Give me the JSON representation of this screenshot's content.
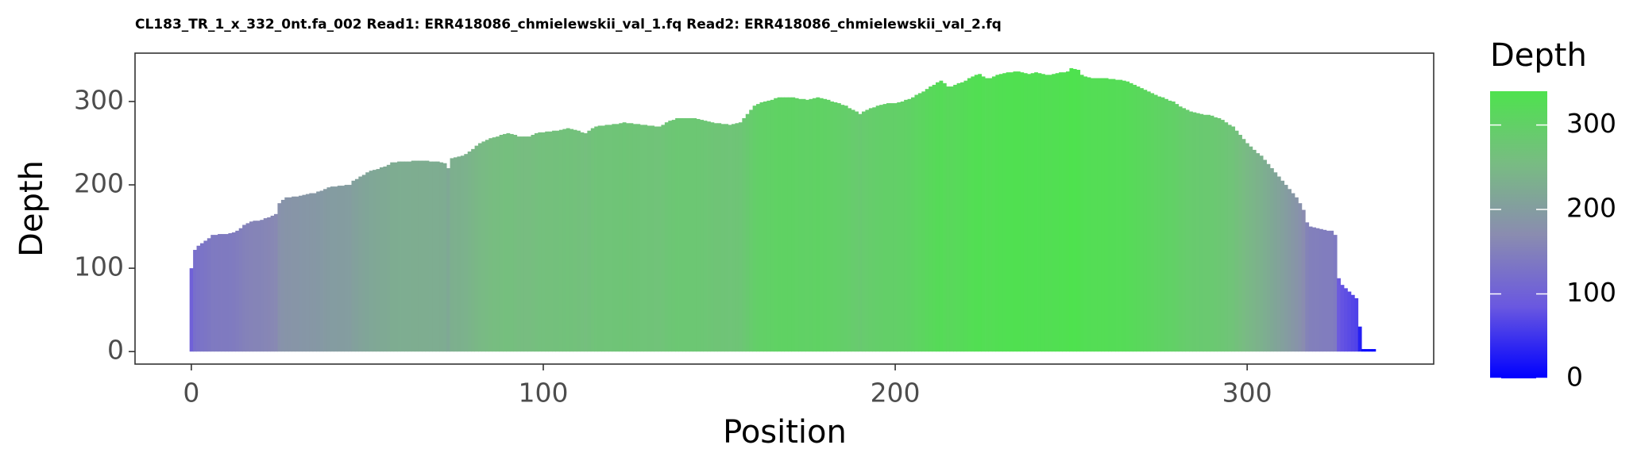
{
  "chart_data": {
    "type": "bar",
    "title": "CL183_TR_1_x_332_0nt.fa_002 Read1: ERR418086_chmielewskii_val_1.fq Read2: ERR418086_chmielewskii_val_2.fq",
    "xlabel": "Position",
    "ylabel": "Depth",
    "legend_title": "Depth",
    "x": [
      0,
      1,
      2,
      3,
      4,
      5,
      6,
      7,
      8,
      9,
      10,
      11,
      12,
      13,
      14,
      15,
      16,
      17,
      18,
      19,
      20,
      21,
      22,
      23,
      24,
      25,
      26,
      27,
      28,
      29,
      30,
      31,
      32,
      33,
      34,
      35,
      36,
      37,
      38,
      39,
      40,
      41,
      42,
      43,
      44,
      45,
      46,
      47,
      48,
      49,
      50,
      51,
      52,
      53,
      54,
      55,
      56,
      57,
      58,
      59,
      60,
      61,
      62,
      63,
      64,
      65,
      66,
      67,
      68,
      69,
      70,
      71,
      72,
      73,
      74,
      75,
      76,
      77,
      78,
      79,
      80,
      81,
      82,
      83,
      84,
      85,
      86,
      87,
      88,
      89,
      90,
      91,
      92,
      93,
      94,
      95,
      96,
      97,
      98,
      99,
      100,
      101,
      102,
      103,
      104,
      105,
      106,
      107,
      108,
      109,
      110,
      111,
      112,
      113,
      114,
      115,
      116,
      117,
      118,
      119,
      120,
      121,
      122,
      123,
      124,
      125,
      126,
      127,
      128,
      129,
      130,
      131,
      132,
      133,
      134,
      135,
      136,
      137,
      138,
      139,
      140,
      141,
      142,
      143,
      144,
      145,
      146,
      147,
      148,
      149,
      150,
      151,
      152,
      153,
      154,
      155,
      156,
      157,
      158,
      159,
      160,
      161,
      162,
      163,
      164,
      165,
      166,
      167,
      168,
      169,
      170,
      171,
      172,
      173,
      174,
      175,
      176,
      177,
      178,
      179,
      180,
      181,
      182,
      183,
      184,
      185,
      186,
      187,
      188,
      189,
      190,
      191,
      192,
      193,
      194,
      195,
      196,
      197,
      198,
      199,
      200,
      201,
      202,
      203,
      204,
      205,
      206,
      207,
      208,
      209,
      210,
      211,
      212,
      213,
      214,
      215,
      216,
      217,
      218,
      219,
      220,
      221,
      222,
      223,
      224,
      225,
      226,
      227,
      228,
      229,
      230,
      231,
      232,
      233,
      234,
      235,
      236,
      237,
      238,
      239,
      240,
      241,
      242,
      243,
      244,
      245,
      246,
      247,
      248,
      249,
      250,
      251,
      252,
      253,
      254,
      255,
      256,
      257,
      258,
      259,
      260,
      261,
      262,
      263,
      264,
      265,
      266,
      267,
      268,
      269,
      270,
      271,
      272,
      273,
      274,
      275,
      276,
      277,
      278,
      279,
      280,
      281,
      282,
      283,
      284,
      285,
      286,
      287,
      288,
      289,
      290,
      291,
      292,
      293,
      294,
      295,
      296,
      297,
      298,
      299,
      300,
      301,
      302,
      303,
      304,
      305,
      306,
      307,
      308,
      309,
      310,
      311,
      312,
      313,
      314,
      315,
      316,
      317,
      318,
      319,
      320,
      321,
      322,
      323,
      324,
      325,
      326,
      327,
      328,
      329,
      330,
      331,
      332,
      333,
      334,
      335,
      336
    ],
    "values": [
      100,
      122,
      127,
      130,
      133,
      136,
      140,
      140,
      141,
      141,
      141,
      142,
      143,
      145,
      148,
      152,
      154,
      156,
      157,
      157,
      158,
      160,
      161,
      163,
      165,
      178,
      182,
      185,
      185,
      186,
      186,
      187,
      188,
      189,
      190,
      190,
      192,
      193,
      195,
      197,
      198,
      198,
      199,
      199,
      200,
      200,
      205,
      207,
      210,
      212,
      215,
      217,
      218,
      219,
      221,
      222,
      224,
      227,
      227,
      228,
      228,
      228,
      228,
      229,
      229,
      229,
      229,
      229,
      228,
      228,
      228,
      227,
      226,
      220,
      232,
      233,
      234,
      235,
      237,
      240,
      243,
      247,
      250,
      252,
      254,
      256,
      257,
      258,
      260,
      261,
      262,
      261,
      260,
      258,
      258,
      258,
      258,
      260,
      262,
      263,
      263,
      264,
      264,
      265,
      265,
      266,
      267,
      268,
      267,
      266,
      265,
      263,
      262,
      265,
      268,
      270,
      271,
      271,
      272,
      272,
      273,
      273,
      274,
      275,
      274,
      274,
      273,
      273,
      272,
      272,
      271,
      271,
      270,
      270,
      272,
      275,
      277,
      278,
      280,
      280,
      280,
      280,
      280,
      280,
      279,
      278,
      277,
      276,
      275,
      274,
      274,
      273,
      273,
      272,
      273,
      274,
      275,
      280,
      285,
      290,
      295,
      297,
      299,
      300,
      301,
      302,
      304,
      305,
      305,
      305,
      305,
      305,
      304,
      303,
      303,
      302,
      303,
      304,
      305,
      304,
      303,
      302,
      300,
      299,
      298,
      296,
      295,
      292,
      290,
      288,
      285,
      288,
      290,
      292,
      293,
      295,
      296,
      297,
      298,
      298,
      298,
      299,
      300,
      302,
      303,
      305,
      308,
      310,
      312,
      315,
      318,
      320,
      323,
      325,
      322,
      318,
      318,
      320,
      322,
      323,
      325,
      328,
      330,
      332,
      333,
      330,
      328,
      328,
      330,
      332,
      333,
      334,
      335,
      335,
      336,
      336,
      335,
      334,
      333,
      334,
      335,
      334,
      333,
      332,
      332,
      333,
      334,
      335,
      335,
      336,
      340,
      339,
      338,
      332,
      330,
      329,
      328,
      328,
      328,
      328,
      328,
      327,
      327,
      326,
      326,
      325,
      324,
      322,
      320,
      318,
      316,
      314,
      312,
      310,
      308,
      306,
      305,
      303,
      301,
      300,
      297,
      294,
      292,
      290,
      288,
      287,
      286,
      285,
      284,
      284,
      283,
      281,
      280,
      278,
      275,
      272,
      270,
      265,
      260,
      255,
      250,
      246,
      242,
      238,
      235,
      230,
      225,
      220,
      215,
      210,
      205,
      200,
      195,
      190,
      185,
      178,
      170,
      155,
      150,
      149,
      148,
      147,
      146,
      145,
      145,
      140,
      88,
      80,
      76,
      72,
      68,
      64,
      30,
      3,
      3,
      3,
      3
    ],
    "xlim": [
      -16,
      353
    ],
    "xticks": [
      0,
      100,
      200,
      300
    ],
    "ylim": [
      -15,
      358
    ],
    "yticks": [
      0,
      100,
      200,
      300
    ],
    "color_scale": {
      "lim": [
        0,
        340
      ],
      "ticks": [
        0,
        100,
        200,
        300
      ],
      "colors": [
        "#0000ff",
        "#6a58e0",
        "#8a8cb0",
        "#78bc82",
        "#4ee24e"
      ]
    }
  }
}
